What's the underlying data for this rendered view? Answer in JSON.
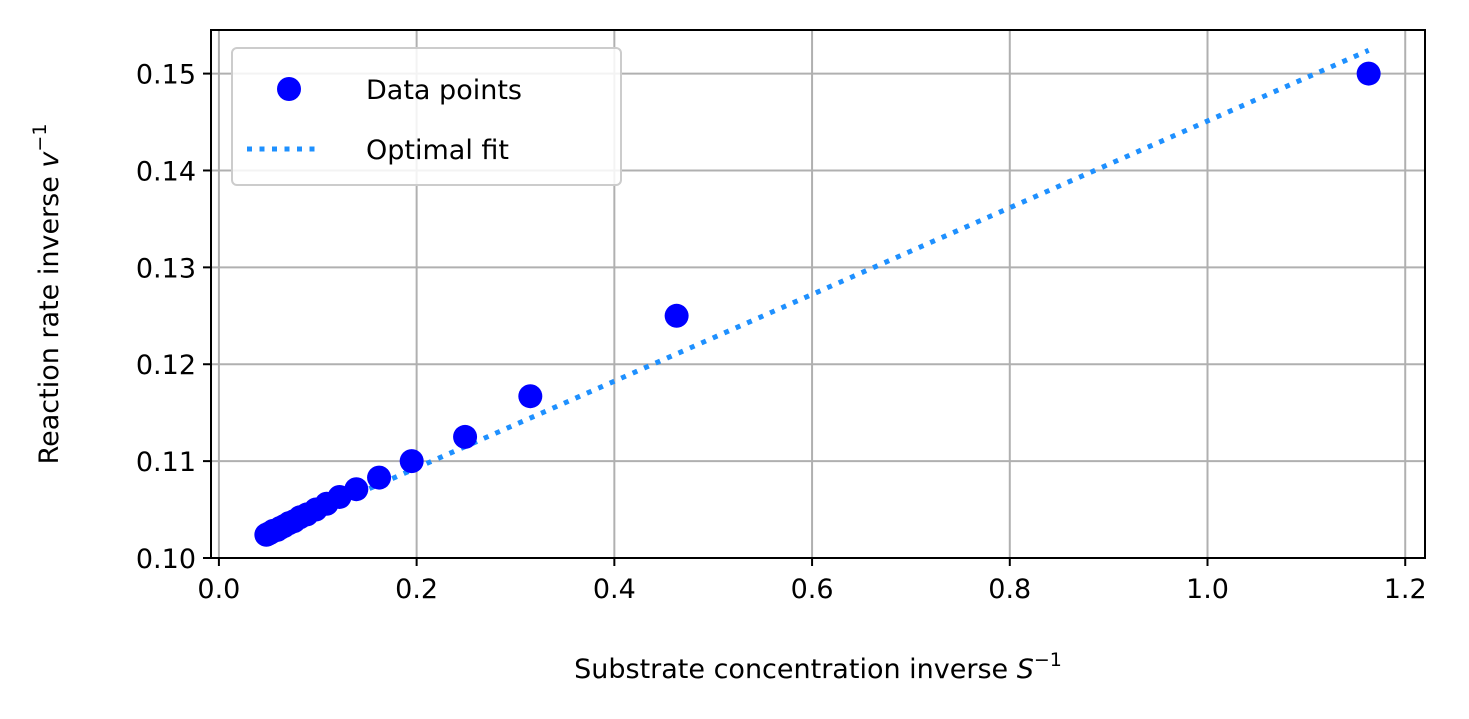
{
  "chart_data": {
    "type": "scatter",
    "xlabel": {
      "text": "Substrate concentration inverse ",
      "symbol": "S",
      "superscript": "−1"
    },
    "ylabel": {
      "text": "Reaction rate inverse ",
      "symbol": "v",
      "superscript": "−1"
    },
    "xlim": [
      -0.008,
      1.22
    ],
    "ylim": [
      0.1,
      0.1545
    ],
    "xticks": [
      0.0,
      0.2,
      0.4,
      0.6,
      0.8,
      1.0,
      1.2
    ],
    "xtick_labels": [
      "0.0",
      "0.2",
      "0.4",
      "0.6",
      "0.8",
      "1.0",
      "1.2"
    ],
    "yticks": [
      0.1,
      0.11,
      0.12,
      0.13,
      0.14,
      0.15
    ],
    "ytick_labels": [
      "0.10",
      "0.11",
      "0.12",
      "0.13",
      "0.14",
      "0.15"
    ],
    "grid": true,
    "legend_position": "top-left",
    "series": [
      {
        "name": "Data points",
        "kind": "scatter",
        "color": "#0000ff",
        "x": [
          1.163,
          0.463,
          0.315,
          0.249,
          0.195,
          0.162,
          0.139,
          0.122,
          0.109,
          0.098,
          0.089,
          0.082,
          0.076,
          0.071,
          0.066,
          0.062,
          0.059,
          0.055,
          0.052,
          0.05,
          0.048
        ],
        "y": [
          0.15,
          0.125,
          0.1167,
          0.1125,
          0.11,
          0.1083,
          0.1071,
          0.1063,
          0.1056,
          0.105,
          0.1045,
          0.1042,
          0.1038,
          0.1036,
          0.1033,
          0.1031,
          0.1029,
          0.1028,
          0.1026,
          0.1025,
          0.1024
        ]
      },
      {
        "name": "Optimal fit",
        "kind": "line",
        "style": "dotted",
        "color": "#1e90ff",
        "x": [
          0.048,
          1.163
        ],
        "y": [
          0.1025,
          0.1524
        ]
      }
    ]
  }
}
